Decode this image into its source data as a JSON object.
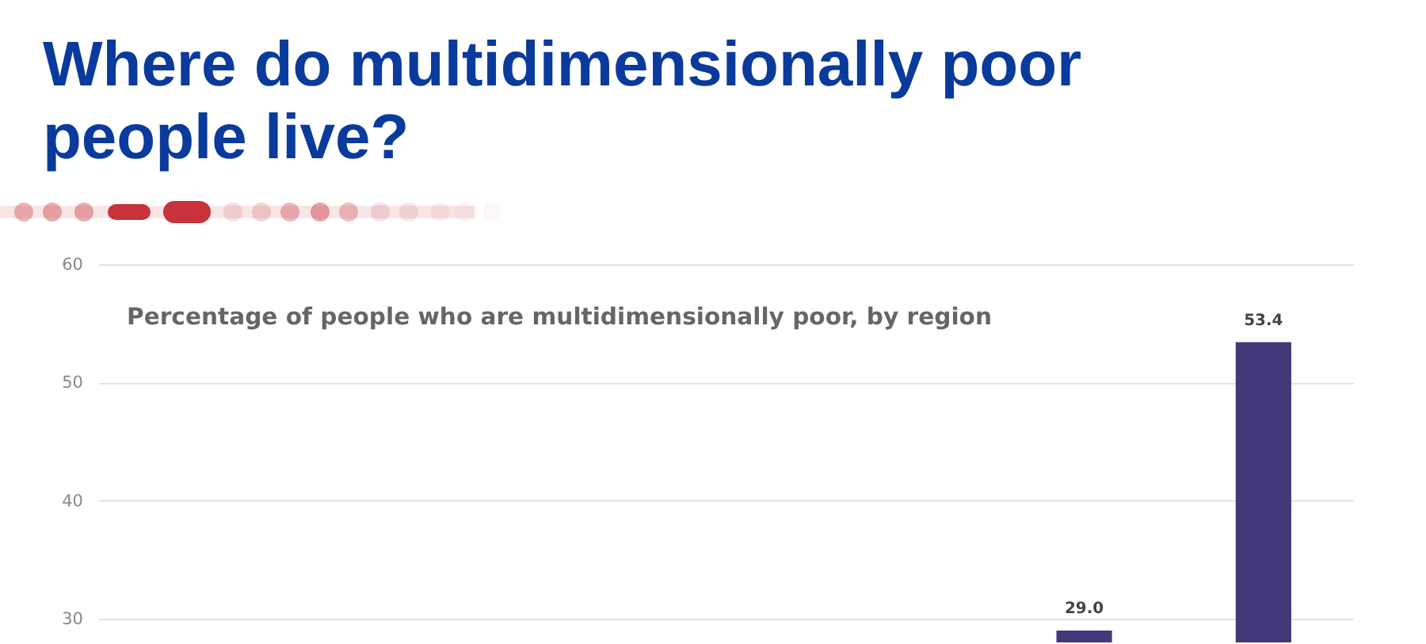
{
  "chart_data": {
    "type": "bar",
    "title": "Where do multidimensionally poor people live?",
    "subtitle": "Percentage of people who are multidimensionally poor, by region",
    "categories": [
      null,
      null,
      null,
      null,
      null,
      null,
      null
    ],
    "values": [
      null,
      null,
      null,
      null,
      null,
      29.0,
      53.4
    ],
    "value_labels": [
      null,
      null,
      null,
      null,
      null,
      "29.0",
      "53.4"
    ],
    "color": "#433879",
    "ylim": [
      28,
      60
    ],
    "yticks": [
      30,
      40,
      50,
      60
    ],
    "grid": "y",
    "tick_labels": "y"
  }
}
